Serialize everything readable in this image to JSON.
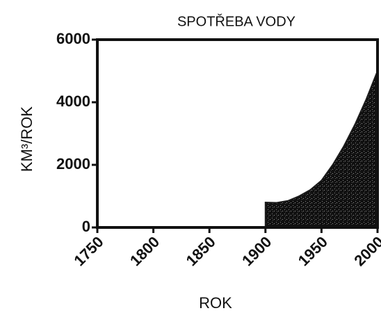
{
  "chart_data": {
    "type": "area",
    "title": "SPOTŘEBA VODY",
    "xlabel": "ROK",
    "ylabel": "KM³/ROK",
    "x": [
      1900,
      1910,
      1920,
      1930,
      1940,
      1950,
      1960,
      1970,
      1980,
      1990,
      2000
    ],
    "values": [
      800,
      790,
      850,
      1000,
      1200,
      1500,
      2000,
      2600,
      3300,
      4100,
      5000
    ],
    "color": "#1a1a1a",
    "xlim": [
      1750,
      2000
    ],
    "xticks": [
      1750,
      1800,
      1850,
      1900,
      1950,
      2000
    ],
    "ylim": [
      0,
      6000
    ],
    "yticks": [
      0,
      2000,
      4000,
      6000
    ],
    "grid": false
  }
}
